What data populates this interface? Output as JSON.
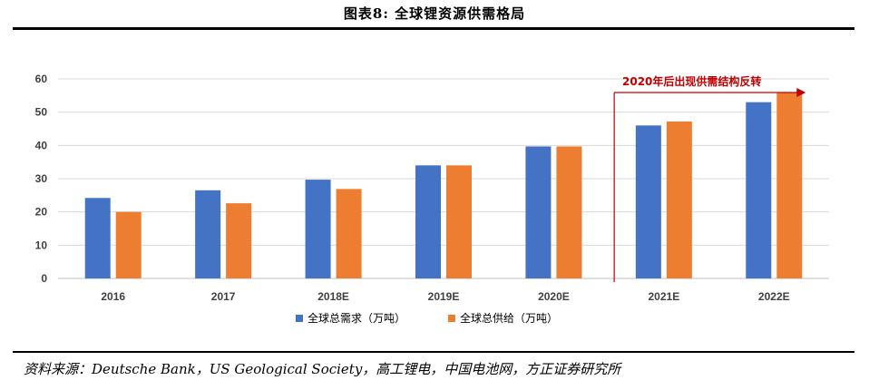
{
  "figure": {
    "title": "图表8:   全球锂资源供需格局",
    "source": "资料来源：Deutsche Bank，US Geological Society，高工锂电，中国电池网，方正证券研究所"
  },
  "chart_data": {
    "type": "bar",
    "categories": [
      "2016",
      "2017",
      "2018E",
      "2019E",
      "2020E",
      "2021E",
      "2022E"
    ],
    "series": [
      {
        "name": "全球总需求（万吨）",
        "color": "#4472c4",
        "values": [
          24.2,
          26.5,
          29.7,
          34.0,
          39.7,
          46.0,
          53.0
        ]
      },
      {
        "name": "全球总供给（万吨）",
        "color": "#ed7d31",
        "values": [
          20.0,
          22.6,
          26.9,
          34.0,
          39.7,
          47.2,
          55.8
        ]
      }
    ],
    "yticks": [
      0,
      10,
      20,
      30,
      40,
      50,
      60
    ],
    "ylim": [
      0,
      60
    ],
    "grid": true,
    "legend": "bottom-center",
    "annotation": {
      "text": "2020年后出现供需结构反转",
      "color": "#c00000",
      "from_category": "2021E",
      "to_category": "2022E"
    }
  }
}
